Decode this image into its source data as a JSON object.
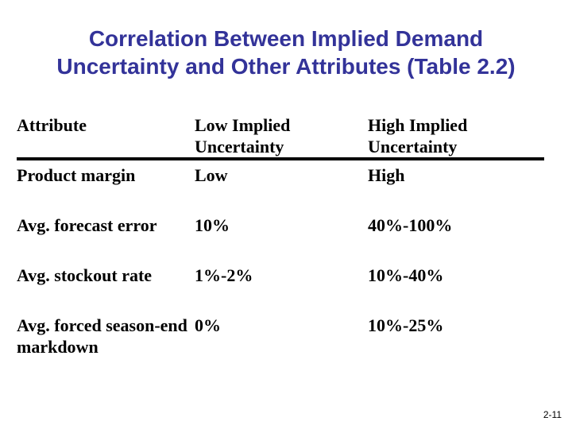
{
  "title": {
    "lines": [
      "Correlation Between Implied Demand",
      "Uncertainty and Other Attributes (Table 2.2)"
    ],
    "color": "#333399"
  },
  "table": {
    "columns": [
      "Attribute",
      "Low Implied Uncertainty",
      "High Implied Uncertainty"
    ],
    "rows": [
      {
        "attribute": "Product margin",
        "low_value": "Low",
        "high_value": "High"
      },
      {
        "attribute": "Avg. forecast error",
        "low_value": "10%",
        "high_value": "40%-100%"
      },
      {
        "attribute": "Avg. stockout rate",
        "low_value": "1%-2%",
        "high_value": "10%-40%"
      },
      {
        "attribute": "Avg. forced season-end markdown",
        "low_value": "0%",
        "high_value": "10%-25%"
      }
    ]
  },
  "footer": {
    "page_number": "2-11"
  }
}
